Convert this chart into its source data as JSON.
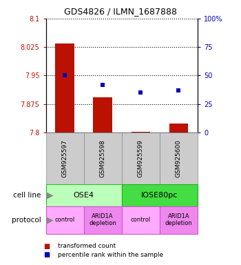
{
  "title": "GDS4826 / ILMN_1687888",
  "samples": [
    "GSM925597",
    "GSM925598",
    "GSM925599",
    "GSM925600"
  ],
  "transformed_counts": [
    8.035,
    7.893,
    7.802,
    7.823
  ],
  "percentile_ranks": [
    50,
    42,
    35,
    37
  ],
  "baseline": 7.8,
  "ylim_left": [
    7.8,
    8.1
  ],
  "ylim_right": [
    0,
    100
  ],
  "yticks_left": [
    7.8,
    7.875,
    7.95,
    8.025,
    8.1
  ],
  "yticks_right": [
    0,
    25,
    50,
    75,
    100
  ],
  "ytick_labels_left": [
    "7.8",
    "7.875",
    "7.95",
    "8.025",
    "8.1"
  ],
  "ytick_labels_right": [
    "0",
    "25",
    "50",
    "75",
    "100%"
  ],
  "bar_color": "#bb1100",
  "dot_color": "#0000bb",
  "cell_line_groups": [
    {
      "label": "OSE4",
      "cols": [
        0,
        1
      ],
      "color": "#bbffbb",
      "edge": "#33bb33"
    },
    {
      "label": "IOSE80pc",
      "cols": [
        2,
        3
      ],
      "color": "#44dd44",
      "edge": "#22aa22"
    }
  ],
  "protocol_groups": [
    {
      "label": "control",
      "col": 0,
      "color": "#ffaaff",
      "edge": "#cc55cc"
    },
    {
      "label": "ARID1A\ndepletion",
      "col": 1,
      "color": "#ee88ee",
      "edge": "#cc55cc"
    },
    {
      "label": "control",
      "col": 2,
      "color": "#ffaaff",
      "edge": "#cc55cc"
    },
    {
      "label": "ARID1A\ndepletion",
      "col": 3,
      "color": "#ee88ee",
      "edge": "#cc55cc"
    }
  ],
  "sample_box_color": "#cccccc",
  "cell_line_label": "cell line",
  "protocol_label": "protocol",
  "legend_red_label": "transformed count",
  "legend_blue_label": "percentile rank within the sample"
}
